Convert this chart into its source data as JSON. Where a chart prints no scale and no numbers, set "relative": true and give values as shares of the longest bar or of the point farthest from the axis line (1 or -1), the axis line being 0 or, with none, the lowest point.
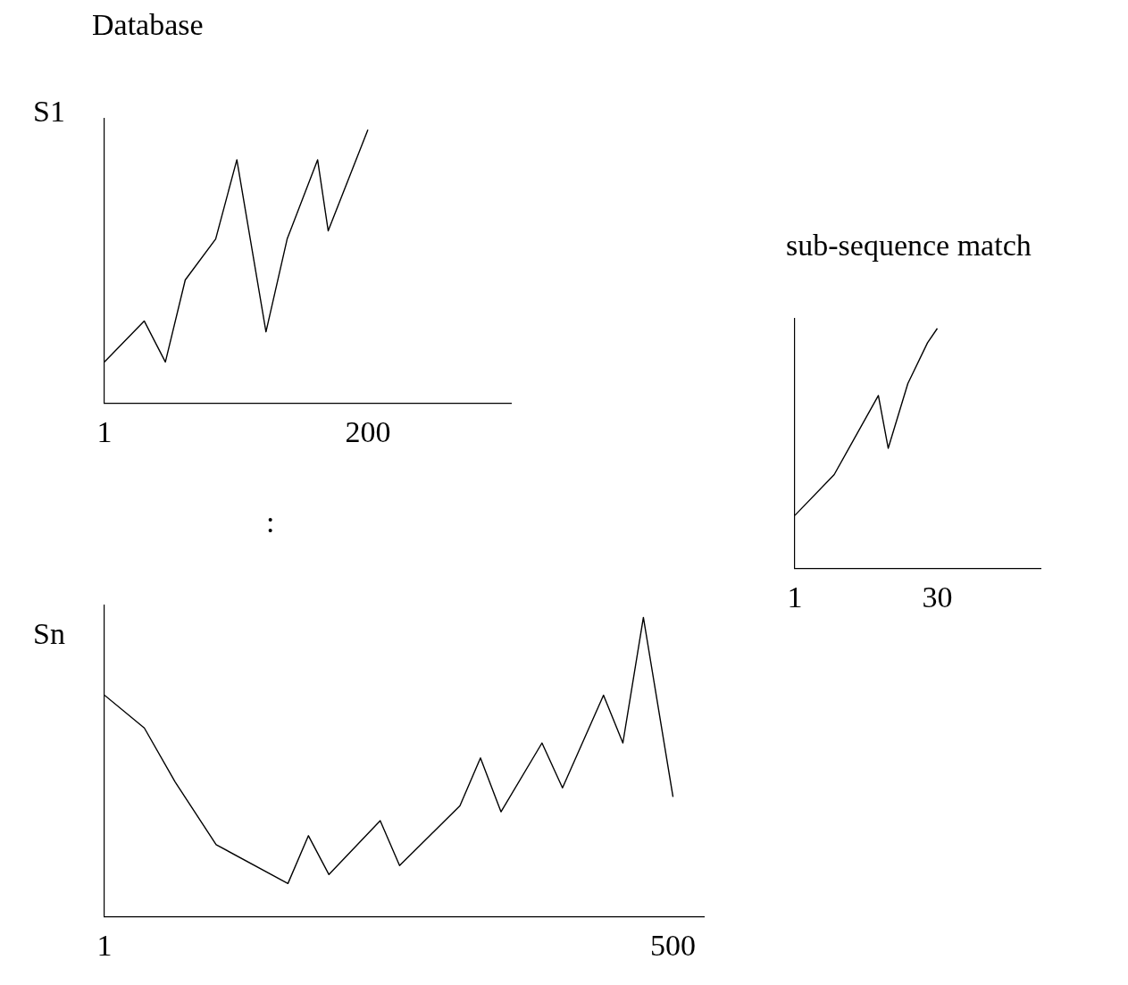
{
  "chart_data": [
    {
      "type": "line",
      "title": "Database",
      "ylabel": "S1",
      "annotations": [
        ":"
      ],
      "relative": true,
      "marker": "none",
      "tick_labels": "x",
      "xlim": [
        1,
        308
      ],
      "xticks": [
        1,
        200
      ],
      "series": [
        {
          "color": "#000000",
          "x": [
            1,
            31,
            47,
            62,
            85,
            101,
            123,
            139,
            162,
            170,
            200
          ],
          "values": [
            0.15,
            0.3,
            0.15,
            0.45,
            0.6,
            0.89,
            0.26,
            0.6,
            0.89,
            0.63,
            1
          ]
        }
      ]
    },
    {
      "type": "line",
      "ylabel": "Sn",
      "relative": true,
      "marker": "none",
      "tick_labels": "x",
      "xlim": [
        1,
        527
      ],
      "xticks": [
        1,
        500
      ],
      "series": [
        {
          "color": "#000000",
          "x": [
            1,
            36,
            63,
            99,
            162,
            180,
            198,
            243,
            260,
            313,
            331,
            349,
            385,
            403,
            439,
            456,
            474,
            500
          ],
          "values": [
            0.74,
            0.63,
            0.45,
            0.24,
            0.11,
            0.27,
            0.14,
            0.32,
            0.17,
            0.37,
            0.53,
            0.35,
            0.58,
            0.43,
            0.74,
            0.58,
            1,
            0.4
          ]
        }
      ]
    },
    {
      "type": "line",
      "title": "sub-sequence match",
      "relative": true,
      "marker": "none",
      "tick_labels": "x",
      "xlim": [
        1,
        51
      ],
      "xticks": [
        1,
        30
      ],
      "series": [
        {
          "color": "#000000",
          "x": [
            1,
            9,
            18,
            20,
            24,
            28,
            30
          ],
          "values": [
            0.22,
            0.39,
            0.72,
            0.5,
            0.77,
            0.94,
            1
          ]
        }
      ]
    }
  ]
}
